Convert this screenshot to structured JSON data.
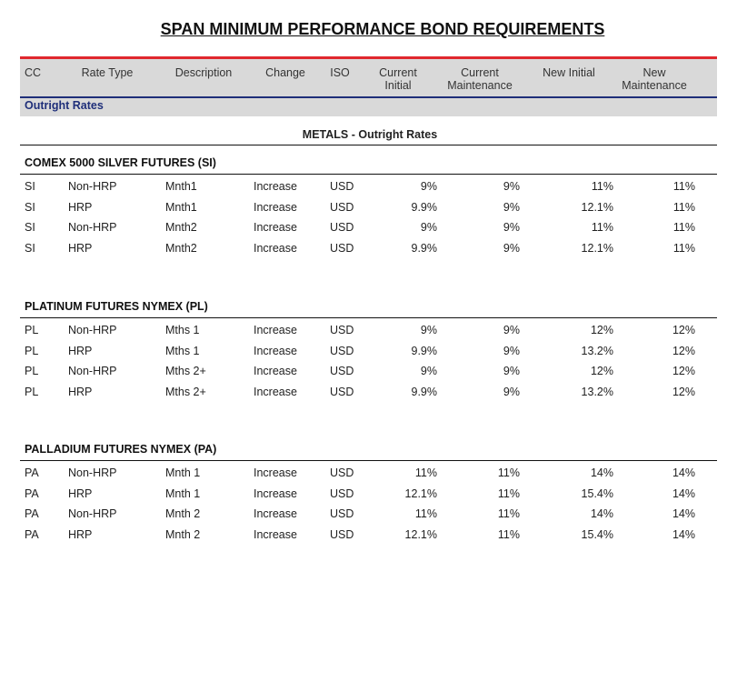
{
  "title": "SPAN MINIMUM PERFORMANCE BOND REQUIREMENTS",
  "columns": [
    "CC",
    "Rate Type",
    "Description",
    "Change",
    "ISO",
    "Current Initial",
    "Current Maintenance",
    "New Initial",
    "New Maintenance"
  ],
  "section": "Outright Rates",
  "group_heading": "METALS - Outright Rates",
  "groups": [
    {
      "title": "COMEX 5000 SILVER FUTURES (SI)",
      "rows": [
        [
          "SI",
          "Non-HRP",
          "Mnth1",
          "Increase",
          "USD",
          "9%",
          "9%",
          "11%",
          "11%"
        ],
        [
          "SI",
          "HRP",
          "Mnth1",
          "Increase",
          "USD",
          "9.9%",
          "9%",
          "12.1%",
          "11%"
        ],
        [
          "SI",
          "Non-HRP",
          "Mnth2",
          "Increase",
          "USD",
          "9%",
          "9%",
          "11%",
          "11%"
        ],
        [
          "SI",
          "HRP",
          "Mnth2",
          "Increase",
          "USD",
          "9.9%",
          "9%",
          "12.1%",
          "11%"
        ]
      ]
    },
    {
      "title": "PLATINUM FUTURES NYMEX (PL)",
      "rows": [
        [
          "PL",
          "Non-HRP",
          "Mths 1",
          "Increase",
          "USD",
          "9%",
          "9%",
          "12%",
          "12%"
        ],
        [
          "PL",
          "HRP",
          "Mths 1",
          "Increase",
          "USD",
          "9.9%",
          "9%",
          "13.2%",
          "12%"
        ],
        [
          "PL",
          "Non-HRP",
          "Mths 2+",
          "Increase",
          "USD",
          "9%",
          "9%",
          "12%",
          "12%"
        ],
        [
          "PL",
          "HRP",
          "Mths 2+",
          "Increase",
          "USD",
          "9.9%",
          "9%",
          "13.2%",
          "12%"
        ]
      ]
    },
    {
      "title": "PALLADIUM FUTURES NYMEX (PA)",
      "rows": [
        [
          "PA",
          "Non-HRP",
          "Mnth 1",
          "Increase",
          "USD",
          "11%",
          "11%",
          "14%",
          "14%"
        ],
        [
          "PA",
          "HRP",
          "Mnth 1",
          "Increase",
          "USD",
          "12.1%",
          "11%",
          "15.4%",
          "14%"
        ],
        [
          "PA",
          "Non-HRP",
          "Mnth 2",
          "Increase",
          "USD",
          "11%",
          "11%",
          "14%",
          "14%"
        ],
        [
          "PA",
          "HRP",
          "Mnth 2",
          "Increase",
          "USD",
          "12.1%",
          "11%",
          "15.4%",
          "14%"
        ]
      ]
    }
  ]
}
